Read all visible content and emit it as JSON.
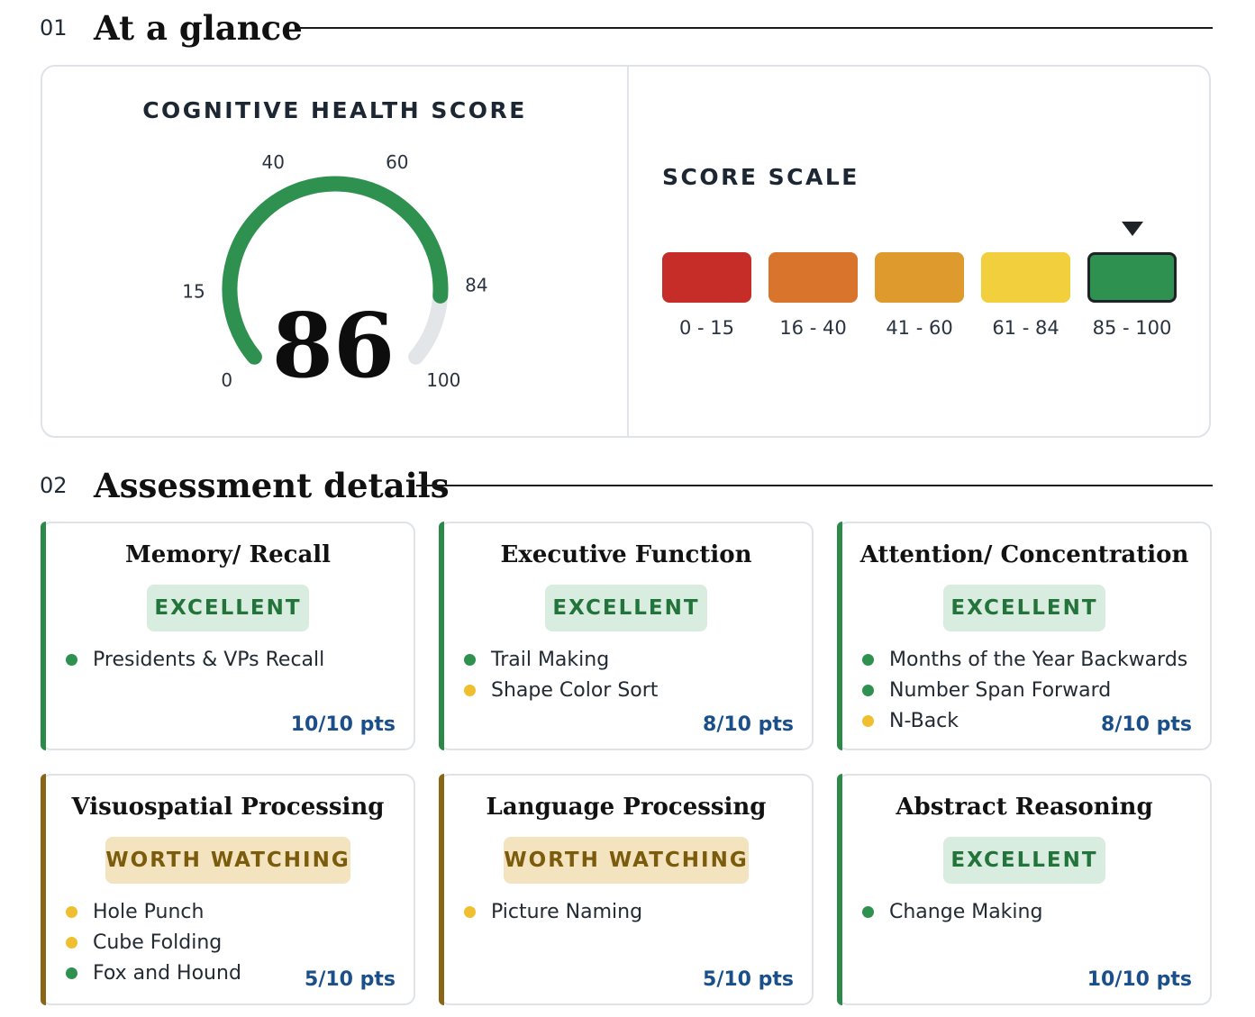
{
  "sections": {
    "glance": {
      "number": "01",
      "title": "At a glance"
    },
    "details": {
      "number": "02",
      "title": "Assessment details"
    }
  },
  "score": {
    "title": "COGNITIVE HEALTH SCORE",
    "value": "86",
    "value_num": 86,
    "ticks": [
      "0",
      "15",
      "40",
      "60",
      "84",
      "100"
    ],
    "fill_color": "#2f9150",
    "track_color": "#e3e6e9"
  },
  "scale": {
    "title": "SCORE SCALE",
    "segments": [
      {
        "label": "0 - 15",
        "color": "#c62d29"
      },
      {
        "label": "16 - 40",
        "color": "#d8742b"
      },
      {
        "label": "41 - 60",
        "color": "#df9a2e"
      },
      {
        "label": "61 - 84",
        "color": "#f2cf3c"
      },
      {
        "label": "85 - 100",
        "color": "#2f9150",
        "active": true
      }
    ]
  },
  "cards": [
    {
      "title": "Memory/ Recall",
      "badge": "EXCELLENT",
      "status": "good",
      "tests": [
        {
          "name": "Presidents & VPs Recall",
          "status": "green"
        }
      ],
      "points": "10/10 pts"
    },
    {
      "title": "Executive Function",
      "badge": "EXCELLENT",
      "status": "good",
      "tests": [
        {
          "name": "Trail Making",
          "status": "green"
        },
        {
          "name": "Shape Color Sort",
          "status": "yellow"
        }
      ],
      "points": "8/10 pts"
    },
    {
      "title": "Attention/ Concentration",
      "badge": "EXCELLENT",
      "status": "good",
      "tests": [
        {
          "name": "Months of the Year Backwards",
          "status": "green"
        },
        {
          "name": "Number Span Forward",
          "status": "green"
        },
        {
          "name": "N-Back",
          "status": "yellow"
        }
      ],
      "points": "8/10 pts"
    },
    {
      "title": "Visuospatial Processing",
      "badge": "WORTH WATCHING",
      "status": "watch",
      "tests": [
        {
          "name": "Hole Punch",
          "status": "yellow"
        },
        {
          "name": "Cube Folding",
          "status": "yellow"
        },
        {
          "name": "Fox and Hound",
          "status": "green"
        }
      ],
      "points": "5/10 pts"
    },
    {
      "title": "Language Processing",
      "badge": "WORTH WATCHING",
      "status": "watch",
      "tests": [
        {
          "name": "Picture Naming",
          "status": "yellow"
        }
      ],
      "points": "5/10 pts"
    },
    {
      "title": "Abstract Reasoning",
      "badge": "EXCELLENT",
      "status": "good",
      "tests": [
        {
          "name": "Change Making",
          "status": "green"
        }
      ],
      "points": "10/10 pts"
    }
  ],
  "colors": {
    "good_bar": "#2b8a48",
    "watch_bar": "#8a6516",
    "dot_green": "#2f9150",
    "dot_yellow": "#f0bf2f"
  }
}
